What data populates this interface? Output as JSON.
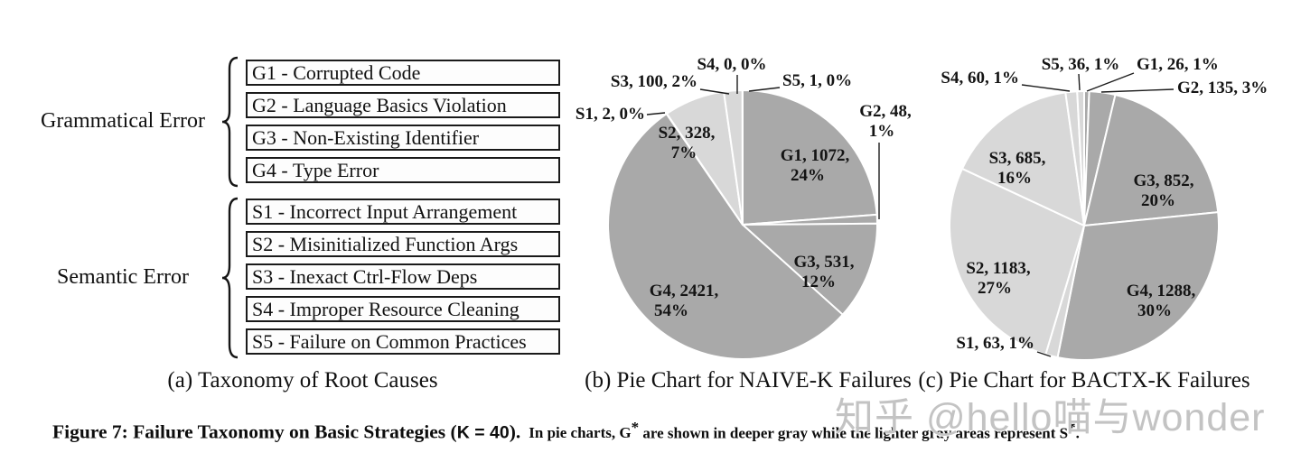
{
  "panel_a": {
    "caption": "(a) Taxonomy of Root Causes",
    "groups": [
      {
        "label": "Grammatical Error",
        "items": [
          "G1 - Corrupted Code",
          "G2 - Language Basics Violation",
          "G3 - Non-Existing Identifier",
          "G4 - Type Error"
        ]
      },
      {
        "label": "Semantic Error",
        "items": [
          "S1 - Incorrect Input Arrangement",
          "S2 - Misinitialized Function Args",
          "S3 - Inexact Ctrl-Flow Deps",
          "S4 - Improper Resource Cleaning",
          "S5 - Failure on Common Practices"
        ]
      }
    ]
  },
  "chart_data": [
    {
      "type": "pie",
      "title": "(b) Pie Chart for NAIVE-K Failures",
      "label_format": "name, count, percent",
      "slices": [
        {
          "name": "G1",
          "value": 1072,
          "pct": 24
        },
        {
          "name": "G2",
          "value": 48,
          "pct": 1
        },
        {
          "name": "G3",
          "value": 531,
          "pct": 12
        },
        {
          "name": "G4",
          "value": 2421,
          "pct": 54
        },
        {
          "name": "S1",
          "value": 2,
          "pct": 0
        },
        {
          "name": "S2",
          "value": 328,
          "pct": 7
        },
        {
          "name": "S3",
          "value": 100,
          "pct": 2
        },
        {
          "name": "S4",
          "value": 0,
          "pct": 0
        },
        {
          "name": "S5",
          "value": 1,
          "pct": 0
        }
      ]
    },
    {
      "type": "pie",
      "title": "(c) Pie Chart for BACTX-K Failures",
      "label_format": "name, count, percent",
      "slices": [
        {
          "name": "G1",
          "value": 26,
          "pct": 1
        },
        {
          "name": "G2",
          "value": 135,
          "pct": 3
        },
        {
          "name": "G3",
          "value": 852,
          "pct": 20
        },
        {
          "name": "G4",
          "value": 1288,
          "pct": 30
        },
        {
          "name": "S1",
          "value": 63,
          "pct": 1
        },
        {
          "name": "S2",
          "value": 1183,
          "pct": 27
        },
        {
          "name": "S3",
          "value": 685,
          "pct": 16
        },
        {
          "name": "S4",
          "value": 60,
          "pct": 1
        },
        {
          "name": "S5",
          "value": 36,
          "pct": 1
        }
      ]
    }
  ],
  "figure_caption": {
    "main_prefix": "Figure 7: Failure Taxonomy on Basic Strategies (",
    "k_label": "K = 40",
    "main_suffix": ").",
    "note_g_prefix": "In pie charts, G",
    "star1": "*",
    "note_middle": " are shown in deeper gray while the lighter gray areas represent S",
    "star2": "*",
    "note_end": "."
  },
  "watermark": "知乎 @hello喵与wonder",
  "colors": {
    "g_slice": "#a9a9a9",
    "s_slice": "#d8d8d8",
    "wedge_border": "#ffffff",
    "label_text": "#141414",
    "watermark": "#c3c3c3"
  }
}
